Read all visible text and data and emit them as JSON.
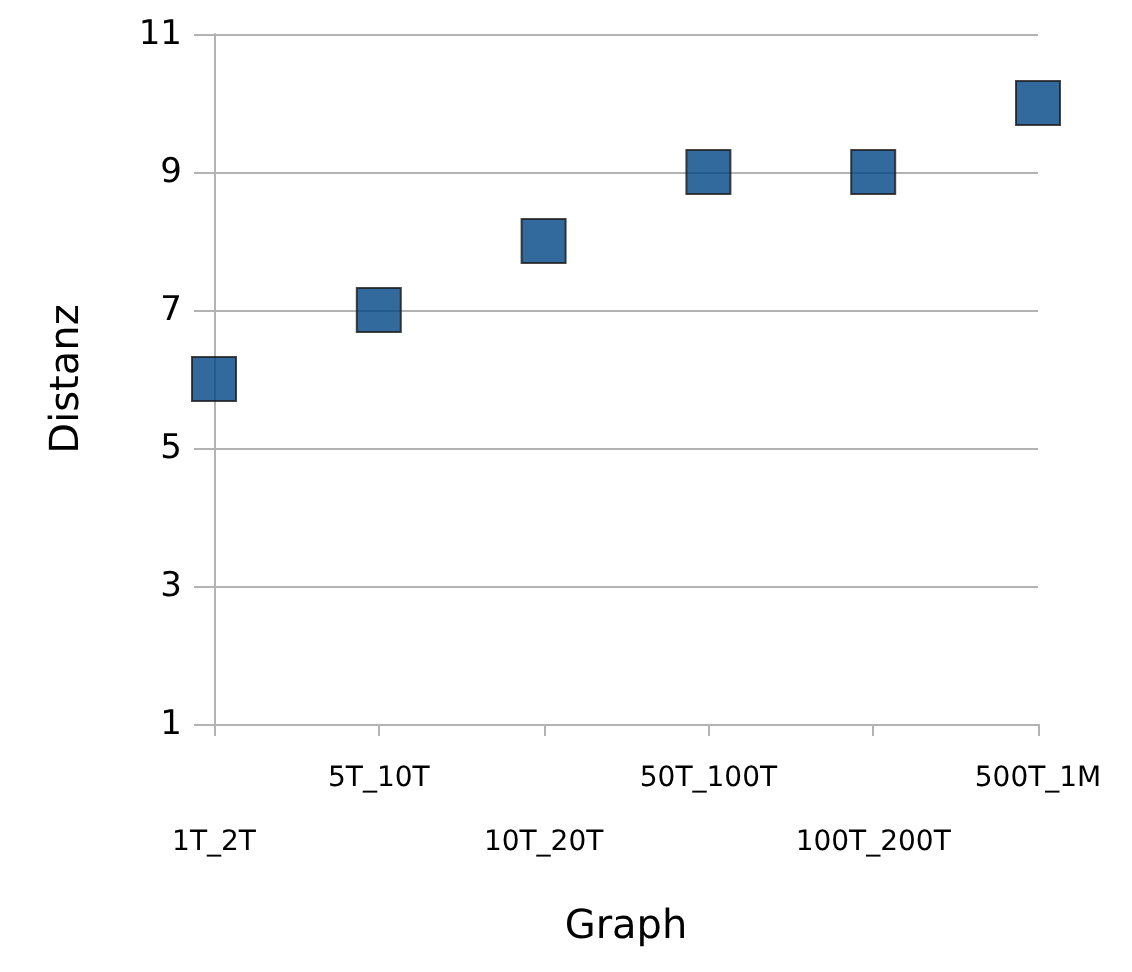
{
  "chart_data": {
    "type": "scatter",
    "xlabel": "Graph",
    "ylabel": "Distanz",
    "categories": [
      "1T_2T",
      "5T_10T",
      "10T_20T",
      "50T_100T",
      "100T_200T",
      "500T_1M"
    ],
    "series": [
      {
        "color": "#004586",
        "values": [
          6,
          7,
          8,
          9,
          9,
          10
        ]
      }
    ],
    "ylim": [
      1,
      11
    ],
    "yticks": [
      1,
      3,
      5,
      7,
      9,
      11
    ],
    "grid": "y",
    "marker": "square"
  }
}
